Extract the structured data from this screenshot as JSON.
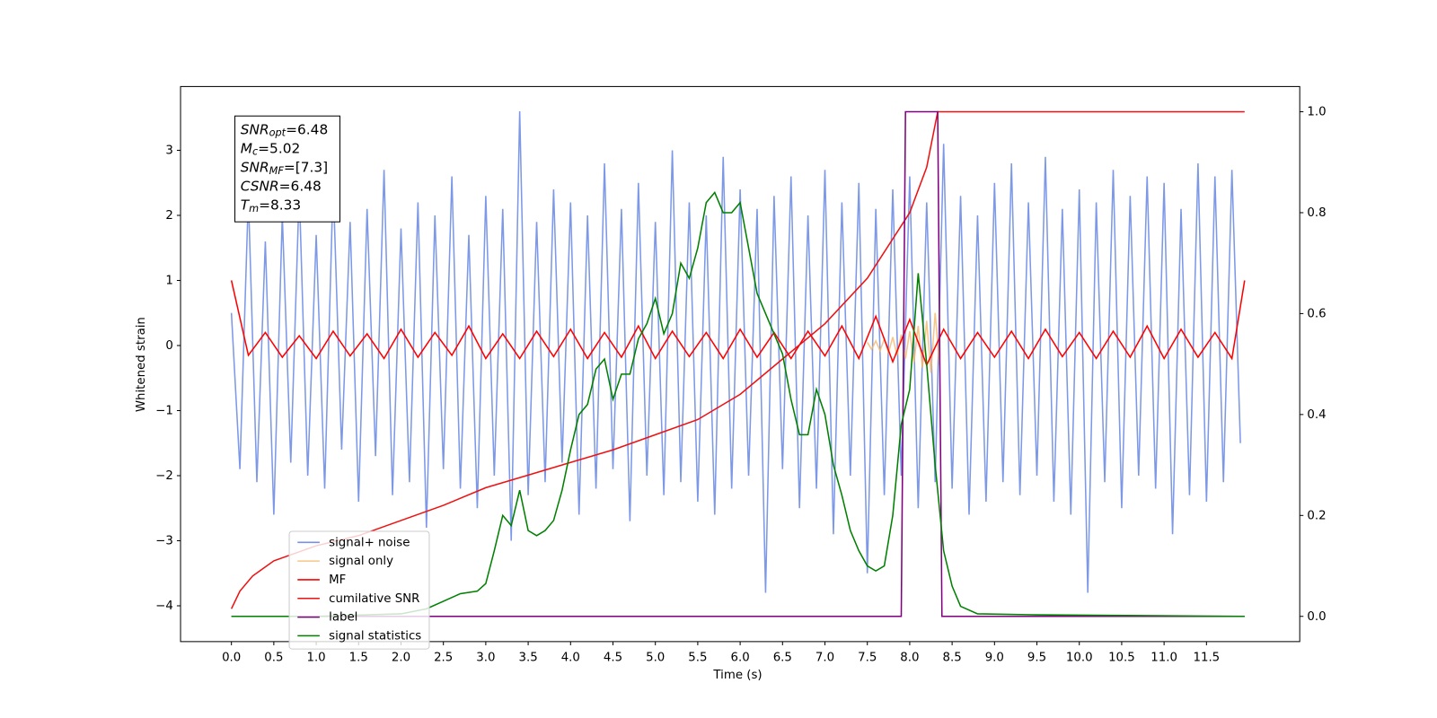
{
  "chart_data": {
    "type": "line",
    "xlabel": "Time (s)",
    "ylabel": "Whitened strain",
    "xlim": [
      -0.6,
      12.6
    ],
    "ylim": [
      -4.55,
      3.98
    ],
    "y2lim": [
      -0.05,
      1.05
    ],
    "xticks": [
      {
        "value": 0,
        "label": "0.0"
      },
      {
        "value": 0.5,
        "label": "0.5"
      },
      {
        "value": 1,
        "label": "1.0"
      },
      {
        "value": 1.5,
        "label": "1.5"
      },
      {
        "value": 2,
        "label": "2.0"
      },
      {
        "value": 2.5,
        "label": "2.5"
      },
      {
        "value": 3,
        "label": "3.0"
      },
      {
        "value": 3.5,
        "label": "3.5"
      },
      {
        "value": 4,
        "label": "4.0"
      },
      {
        "value": 4.5,
        "label": "4.5"
      },
      {
        "value": 5,
        "label": "5.0"
      },
      {
        "value": 5.5,
        "label": "5.5"
      },
      {
        "value": 6,
        "label": "6.0"
      },
      {
        "value": 6.5,
        "label": "6.5"
      },
      {
        "value": 7,
        "label": "7.0"
      },
      {
        "value": 7.5,
        "label": "7.5"
      },
      {
        "value": 8,
        "label": "8.0"
      },
      {
        "value": 8.5,
        "label": "8.5"
      },
      {
        "value": 9,
        "label": "9.0"
      },
      {
        "value": 9.5,
        "label": "9.5"
      },
      {
        "value": 10,
        "label": "10.0"
      },
      {
        "value": 10.5,
        "label": "10.5"
      },
      {
        "value": 11,
        "label": "11.0"
      },
      {
        "value": 11.5,
        "label": "11.5"
      }
    ],
    "yticks": [
      -4,
      -3,
      -2,
      -1,
      0,
      1,
      2,
      3
    ],
    "y2ticks": [
      {
        "value": 0,
        "label": "0.0"
      },
      {
        "value": 0.2,
        "label": "0.2"
      },
      {
        "value": 0.4,
        "label": "0.4"
      },
      {
        "value": 0.6,
        "label": "0.6"
      },
      {
        "value": 0.8,
        "label": "0.8"
      },
      {
        "value": 1,
        "label": "1.0"
      }
    ],
    "legend_loc": "lower left",
    "annotation": [
      {
        "main": "SNR",
        "sub": "opt",
        "rest": "=6.48"
      },
      {
        "main": "M",
        "sub": "c",
        "rest": "=5.02"
      },
      {
        "main": "SNR",
        "sub": "MF",
        "rest": "=[7.3]"
      },
      {
        "main": "CSNR",
        "sub": null,
        "rest": "=6.48"
      },
      {
        "main": "T",
        "sub": "m",
        "rest": "=8.33"
      }
    ],
    "series": [
      {
        "name": "signal+ noise",
        "color": "#7592e6",
        "axis": "y",
        "x": [
          0,
          0.1,
          0.2,
          0.3,
          0.4,
          0.5,
          0.6,
          0.7,
          0.8,
          0.9,
          1,
          1.1,
          1.2,
          1.3,
          1.4,
          1.5,
          1.6,
          1.7,
          1.8,
          1.9,
          2,
          2.1,
          2.2,
          2.3,
          2.4,
          2.5,
          2.6,
          2.7,
          2.8,
          2.9,
          3,
          3.1,
          3.2,
          3.3,
          3.4,
          3.5,
          3.6,
          3.7,
          3.8,
          3.9,
          4,
          4.1,
          4.2,
          4.3,
          4.4,
          4.5,
          4.6,
          4.7,
          4.8,
          4.9,
          5,
          5.1,
          5.2,
          5.3,
          5.4,
          5.5,
          5.6,
          5.7,
          5.8,
          5.9,
          6,
          6.1,
          6.2,
          6.3,
          6.4,
          6.5,
          6.6,
          6.7,
          6.8,
          6.9,
          7,
          7.1,
          7.2,
          7.3,
          7.4,
          7.5,
          7.6,
          7.7,
          7.8,
          7.9,
          8,
          8.1,
          8.2,
          8.3,
          8.4,
          8.5,
          8.6,
          8.7,
          8.8,
          8.9,
          9,
          9.1,
          9.2,
          9.3,
          9.4,
          9.5,
          9.6,
          9.7,
          9.8,
          9.9,
          10,
          10.1,
          10.2,
          10.3,
          10.4,
          10.5,
          10.6,
          10.7,
          10.8,
          10.9,
          11,
          11.1,
          11.2,
          11.3,
          11.4,
          11.5,
          11.6,
          11.7,
          11.8,
          11.9
        ],
        "values": [
          0.5,
          -1.9,
          2.3,
          -2.1,
          1.6,
          -2.6,
          2.0,
          -1.8,
          2.4,
          -2.0,
          1.7,
          -2.2,
          2.5,
          -1.6,
          1.9,
          -2.4,
          2.1,
          -1.7,
          2.7,
          -2.3,
          1.8,
          -2.1,
          2.2,
          -2.8,
          2.0,
          -1.9,
          2.6,
          -2.2,
          1.7,
          -2.5,
          2.3,
          -2.0,
          2.1,
          -3.0,
          3.6,
          -2.3,
          1.9,
          -2.1,
          2.4,
          -1.8,
          2.2,
          -2.6,
          2.0,
          -2.2,
          2.8,
          -1.9,
          2.1,
          -2.7,
          2.5,
          -2.0,
          1.9,
          -2.3,
          3.0,
          -2.1,
          2.2,
          -2.4,
          2.0,
          -2.6,
          2.9,
          -2.2,
          2.4,
          -2.0,
          2.1,
          -3.8,
          2.3,
          -1.9,
          2.6,
          -2.5,
          2.0,
          -2.2,
          2.7,
          -2.9,
          2.2,
          -2.0,
          2.5,
          -3.5,
          2.1,
          -2.3,
          2.4,
          -2.0,
          2.6,
          -2.5,
          2.2,
          -2.1,
          3.1,
          -2.2,
          2.3,
          -2.6,
          2.0,
          -2.4,
          2.5,
          -2.1,
          2.8,
          -2.3,
          2.2,
          -2.0,
          2.9,
          -2.4,
          2.1,
          -2.6,
          2.4,
          -3.8,
          2.2,
          -2.1,
          2.7,
          -2.5,
          2.3,
          -2.0,
          2.6,
          -2.2,
          2.5,
          -2.9,
          2.1,
          -2.3,
          2.8,
          -2.4,
          2.6,
          -2.1,
          2.7,
          -1.5
        ]
      },
      {
        "name": "signal only",
        "color": "#f5b76a",
        "axis": "y",
        "x": [
          7.5,
          7.55,
          7.6,
          7.65,
          7.7,
          7.75,
          7.8,
          7.85,
          7.9,
          7.95,
          8,
          8.05,
          8.1,
          8.15,
          8.2,
          8.25,
          8.3,
          8.35
        ],
        "values": [
          0.05,
          -0.06,
          0.07,
          -0.08,
          0.1,
          -0.11,
          0.13,
          -0.15,
          0.17,
          -0.2,
          0.22,
          -0.26,
          0.3,
          -0.34,
          0.38,
          -0.42,
          0.5,
          -0.3
        ]
      },
      {
        "name": "MF",
        "color": "#ff0000",
        "axis": "y",
        "x": [
          0,
          0.2,
          0.4,
          0.6,
          0.8,
          1,
          1.2,
          1.4,
          1.6,
          1.8,
          2,
          2.2,
          2.4,
          2.6,
          2.8,
          3,
          3.2,
          3.4,
          3.6,
          3.8,
          4,
          4.2,
          4.4,
          4.6,
          4.8,
          5,
          5.2,
          5.4,
          5.6,
          5.8,
          6,
          6.2,
          6.4,
          6.6,
          6.8,
          7,
          7.2,
          7.4,
          7.6,
          7.8,
          8,
          8.2,
          8.4,
          8.6,
          8.8,
          9,
          9.2,
          9.4,
          9.6,
          9.8,
          10,
          10.2,
          10.4,
          10.6,
          10.8,
          11,
          11.2,
          11.4,
          11.6,
          11.8,
          11.95
        ],
        "values": [
          1.0,
          -0.15,
          0.2,
          -0.18,
          0.15,
          -0.2,
          0.22,
          -0.16,
          0.18,
          -0.2,
          0.25,
          -0.18,
          0.2,
          -0.15,
          0.3,
          -0.2,
          0.18,
          -0.2,
          0.22,
          -0.17,
          0.25,
          -0.2,
          0.2,
          -0.18,
          0.3,
          -0.2,
          0.22,
          -0.17,
          0.2,
          -0.2,
          0.25,
          -0.18,
          0.2,
          -0.2,
          0.22,
          -0.16,
          0.3,
          -0.2,
          0.45,
          -0.25,
          0.4,
          -0.3,
          0.25,
          -0.2,
          0.2,
          -0.18,
          0.22,
          -0.2,
          0.25,
          -0.17,
          0.2,
          -0.2,
          0.22,
          -0.18,
          0.3,
          -0.2,
          0.25,
          -0.18,
          0.2,
          -0.2,
          1.0
        ]
      },
      {
        "name": "cumilative SNR",
        "color": "#ee1111",
        "axis": "y2",
        "x": [
          0,
          0.1,
          0.25,
          0.5,
          1,
          1.5,
          2,
          2.5,
          3,
          3.5,
          4,
          4.5,
          5,
          5.5,
          6,
          6.5,
          7,
          7.5,
          8,
          8.2,
          8.33,
          11.95
        ],
        "values": [
          0.015,
          0.05,
          0.08,
          0.11,
          0.14,
          0.16,
          0.19,
          0.22,
          0.255,
          0.28,
          0.305,
          0.33,
          0.36,
          0.39,
          0.44,
          0.51,
          0.58,
          0.67,
          0.8,
          0.89,
          1.0,
          1.0
        ]
      },
      {
        "name": "label",
        "color": "#800080",
        "axis": "y2",
        "x": [
          0,
          7.9,
          7.95,
          8.33,
          8.38,
          11.95
        ],
        "values": [
          0,
          0,
          1,
          1,
          0,
          0
        ]
      },
      {
        "name": "signal statistics",
        "color": "#008000",
        "axis": "y2",
        "x": [
          0,
          1,
          2,
          2.3,
          2.5,
          2.7,
          2.9,
          3,
          3.1,
          3.2,
          3.3,
          3.4,
          3.5,
          3.6,
          3.7,
          3.8,
          3.9,
          4,
          4.1,
          4.2,
          4.3,
          4.4,
          4.5,
          4.6,
          4.7,
          4.8,
          4.9,
          5,
          5.1,
          5.2,
          5.3,
          5.4,
          5.5,
          5.6,
          5.7,
          5.8,
          5.9,
          6,
          6.1,
          6.2,
          6.3,
          6.4,
          6.5,
          6.6,
          6.7,
          6.8,
          6.9,
          7,
          7.1,
          7.2,
          7.3,
          7.4,
          7.5,
          7.6,
          7.7,
          7.8,
          7.9,
          8,
          8.1,
          8.2,
          8.3,
          8.4,
          8.5,
          8.6,
          8.8,
          9.5,
          11.95
        ],
        "values": [
          0,
          0,
          0.005,
          0.015,
          0.03,
          0.045,
          0.05,
          0.065,
          0.13,
          0.2,
          0.18,
          0.25,
          0.17,
          0.16,
          0.17,
          0.19,
          0.25,
          0.33,
          0.4,
          0.42,
          0.49,
          0.51,
          0.43,
          0.48,
          0.48,
          0.55,
          0.58,
          0.63,
          0.56,
          0.6,
          0.7,
          0.67,
          0.73,
          0.82,
          0.84,
          0.8,
          0.8,
          0.82,
          0.73,
          0.64,
          0.6,
          0.56,
          0.52,
          0.43,
          0.36,
          0.36,
          0.45,
          0.4,
          0.3,
          0.24,
          0.17,
          0.13,
          0.1,
          0.09,
          0.1,
          0.2,
          0.38,
          0.45,
          0.68,
          0.5,
          0.3,
          0.13,
          0.06,
          0.02,
          0.005,
          0.003,
          0
        ]
      }
    ]
  }
}
